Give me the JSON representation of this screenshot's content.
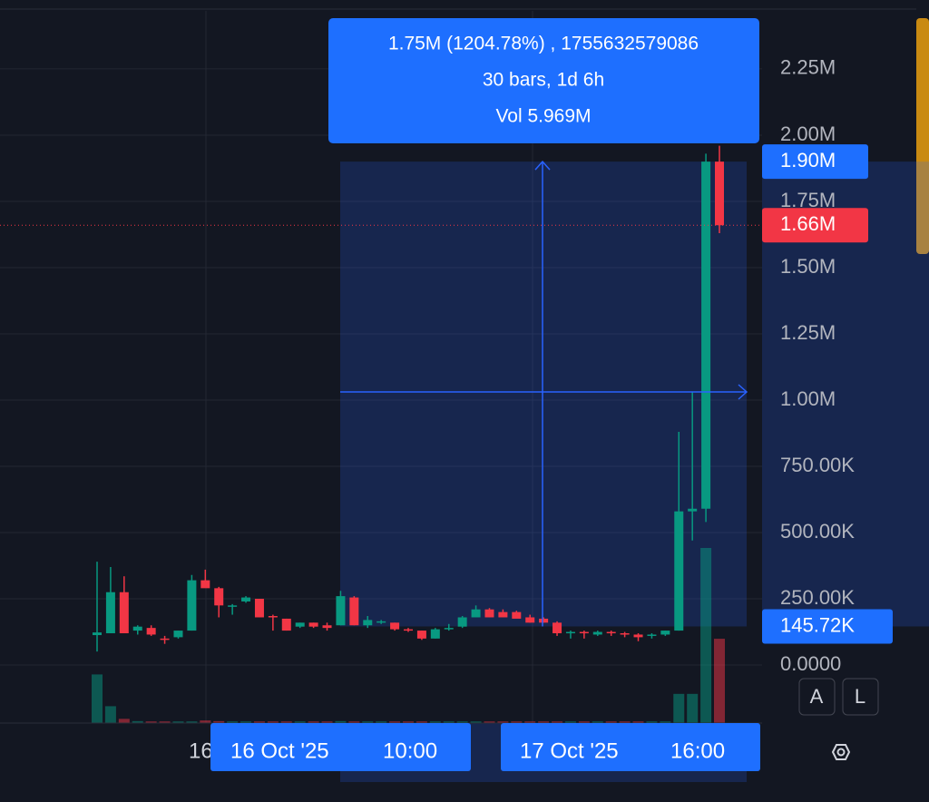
{
  "chart_data": {
    "type": "candlestick",
    "open": [
      113000,
      120000,
      275000,
      130000,
      140000,
      100000,
      105000,
      130000,
      320000,
      290000,
      225000,
      240000,
      250000,
      185000,
      175000,
      145000,
      160000,
      150000,
      150000,
      255000,
      150000,
      160000,
      160000,
      135000,
      130000,
      100000,
      135000,
      145000,
      180000,
      210000,
      200000,
      200000,
      180000,
      175000,
      160000,
      120000,
      125000,
      115000,
      125000,
      120000,
      115000,
      110000,
      115000,
      130000,
      580000,
      590000,
      1900000
    ],
    "high": [
      390000,
      370000,
      335000,
      150000,
      150000,
      110000,
      130000,
      340000,
      360000,
      295000,
      230000,
      260000,
      250000,
      190000,
      175000,
      160000,
      160000,
      160000,
      280000,
      260000,
      185000,
      170000,
      160000,
      140000,
      130000,
      140000,
      155000,
      185000,
      225000,
      215000,
      210000,
      205000,
      190000,
      180000,
      165000,
      130000,
      130000,
      130000,
      130000,
      125000,
      120000,
      120000,
      130000,
      880000,
      1030000,
      1930000,
      1960000
    ],
    "low": [
      51000,
      120000,
      120000,
      115000,
      110000,
      80000,
      100000,
      130000,
      300000,
      180000,
      190000,
      235000,
      180000,
      130000,
      130000,
      140000,
      140000,
      130000,
      150000,
      150000,
      140000,
      155000,
      130000,
      125000,
      95000,
      100000,
      130000,
      140000,
      180000,
      180000,
      180000,
      180000,
      160000,
      160000,
      110000,
      100000,
      100000,
      110000,
      110000,
      105000,
      90000,
      100000,
      110000,
      130000,
      470000,
      540000,
      1630000
    ],
    "close": [
      123000,
      275000,
      120000,
      145000,
      115000,
      95000,
      130000,
      320000,
      290000,
      225000,
      225000,
      255000,
      180000,
      180000,
      130000,
      160000,
      145000,
      140000,
      260000,
      150000,
      170000,
      165000,
      135000,
      130000,
      100000,
      135000,
      140000,
      180000,
      210000,
      180000,
      180000,
      175000,
      160000,
      160000,
      120000,
      125000,
      120000,
      125000,
      120000,
      115000,
      105000,
      115000,
      130000,
      580000,
      590000,
      1900000,
      1660000
    ],
    "volume": [
      1500000,
      520000,
      130000,
      60000,
      50000,
      50000,
      50000,
      50000,
      80000,
      60000,
      50000,
      50000,
      50000,
      50000,
      50000,
      50000,
      50000,
      50000,
      60000,
      50000,
      50000,
      50000,
      50000,
      50000,
      50000,
      50000,
      50000,
      50000,
      50000,
      50000,
      50000,
      50000,
      50000,
      50000,
      50000,
      50000,
      50000,
      50000,
      50000,
      50000,
      50000,
      50000,
      50000,
      900000,
      900000,
      5400000,
      2600000
    ],
    "up_color": "#089981",
    "down_color": "#f23645",
    "ylim": [
      -219000,
      2510000
    ],
    "yticks": [
      {
        "value": 0,
        "label": "0.0000"
      },
      {
        "value": 250000,
        "label": "250.00K"
      },
      {
        "value": 500000,
        "label": "500.00K"
      },
      {
        "value": 750000,
        "label": "750.00K"
      },
      {
        "value": 1000000,
        "label": "1.00M"
      },
      {
        "value": 1250000,
        "label": "1.25M"
      },
      {
        "value": 1500000,
        "label": "1.50M"
      },
      {
        "value": 1750000,
        "label": "1.75M"
      },
      {
        "value": 2000000,
        "label": "2.00M"
      },
      {
        "value": 2250000,
        "label": "2.25M"
      }
    ],
    "grid": true,
    "last_price": {
      "value": 1660000,
      "label": "1.66M"
    },
    "measure": {
      "tooltip": [
        "1.75M (1204.78%) , 1755632579086",
        "30 bars, 1d 6h",
        "Vol 5.969M"
      ],
      "high": {
        "value": 1900000,
        "label": "1.90M"
      },
      "low": {
        "value": 145720,
        "label": "145.72K"
      }
    },
    "x_tick_label": "16",
    "range_labels": [
      {
        "date": "16 Oct '25",
        "time": "10:00"
      },
      {
        "date": "17 Oct '25",
        "time": "16:00"
      }
    ],
    "buttons": [
      "A",
      "L"
    ]
  }
}
